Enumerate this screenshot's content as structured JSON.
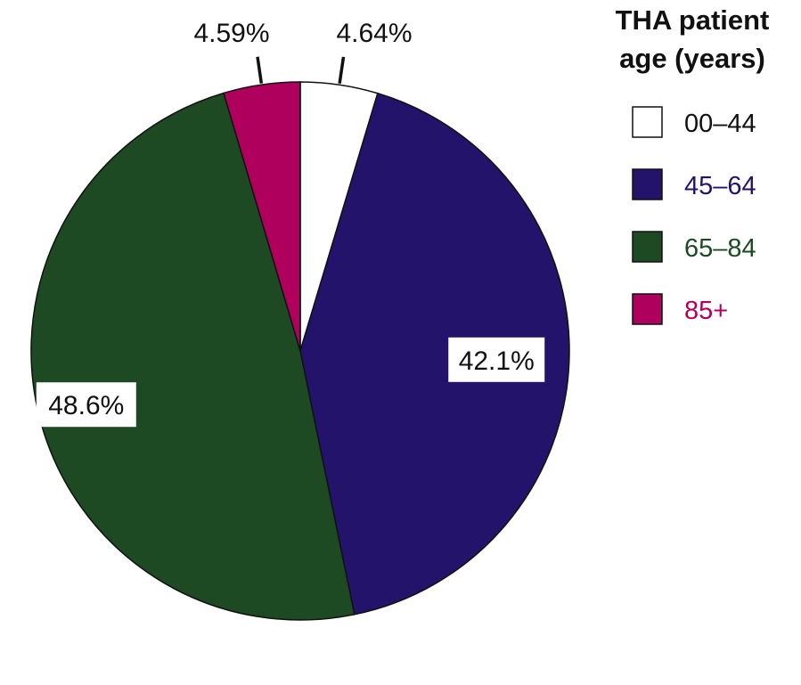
{
  "chart_data": {
    "type": "pie",
    "title": "",
    "legend": {
      "title_lines": [
        "THA patient",
        "age (years)"
      ],
      "placement": "right"
    },
    "categories": [
      "00–44",
      "45–64",
      "65–84",
      "85+"
    ],
    "values": [
      4.64,
      42.1,
      48.6,
      4.59
    ],
    "labels": [
      "4.64%",
      "42.1%",
      "48.6%",
      "4.59%"
    ],
    "colors": [
      "#ffffff",
      "#24136a",
      "#1d4a22",
      "#b0005e"
    ],
    "legend_text_colors": [
      "#111111",
      "#24136a",
      "#1d4a22",
      "#b0005e"
    ],
    "start": "12 o'clock",
    "direction": "clockwise"
  }
}
